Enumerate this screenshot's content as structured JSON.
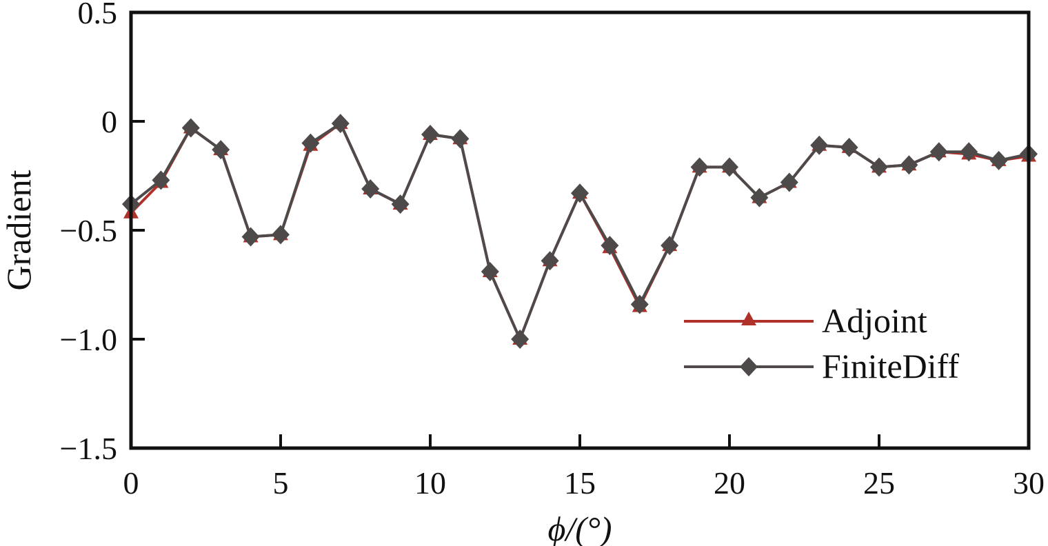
{
  "chart_data": {
    "type": "line",
    "title": "",
    "xlabel": "ϕ/(°)",
    "ylabel": "Gradient",
    "xlim": [
      0,
      30
    ],
    "ylim": [
      -1.5,
      0.5
    ],
    "xticks": [
      0,
      5,
      10,
      15,
      20,
      25,
      30
    ],
    "yticks": [
      0.5,
      0,
      -0.5,
      -1.0,
      -1.5
    ],
    "xtick_labels": [
      "0",
      "5",
      "10",
      "15",
      "20",
      "25",
      "30"
    ],
    "ytick_labels": [
      "0.5",
      "0",
      "−0.5",
      "−1.0",
      "−1.5"
    ],
    "grid": false,
    "legend_position": "lower-right",
    "x": [
      0,
      1,
      2,
      3,
      4,
      5,
      6,
      7,
      8,
      9,
      10,
      11,
      12,
      13,
      14,
      15,
      16,
      17,
      18,
      19,
      20,
      21,
      22,
      23,
      24,
      25,
      26,
      27,
      28,
      29,
      30
    ],
    "series": [
      {
        "name": "Adjoint",
        "marker": "triangle",
        "color": "#b0302a",
        "values": [
          -0.42,
          -0.28,
          -0.03,
          -0.13,
          -0.53,
          -0.52,
          -0.11,
          -0.01,
          -0.31,
          -0.38,
          -0.06,
          -0.08,
          -0.69,
          -1.0,
          -0.64,
          -0.33,
          -0.58,
          -0.85,
          -0.57,
          -0.21,
          -0.21,
          -0.35,
          -0.28,
          -0.11,
          -0.12,
          -0.21,
          -0.2,
          -0.14,
          -0.15,
          -0.18,
          -0.16
        ]
      },
      {
        "name": "FiniteDiff",
        "marker": "diamond",
        "color": "#4d4a49",
        "values": [
          -0.38,
          -0.27,
          -0.03,
          -0.13,
          -0.53,
          -0.52,
          -0.1,
          -0.01,
          -0.31,
          -0.38,
          -0.06,
          -0.08,
          -0.69,
          -1.0,
          -0.64,
          -0.33,
          -0.57,
          -0.84,
          -0.57,
          -0.21,
          -0.21,
          -0.35,
          -0.28,
          -0.11,
          -0.12,
          -0.21,
          -0.2,
          -0.14,
          -0.14,
          -0.18,
          -0.15
        ]
      }
    ]
  }
}
